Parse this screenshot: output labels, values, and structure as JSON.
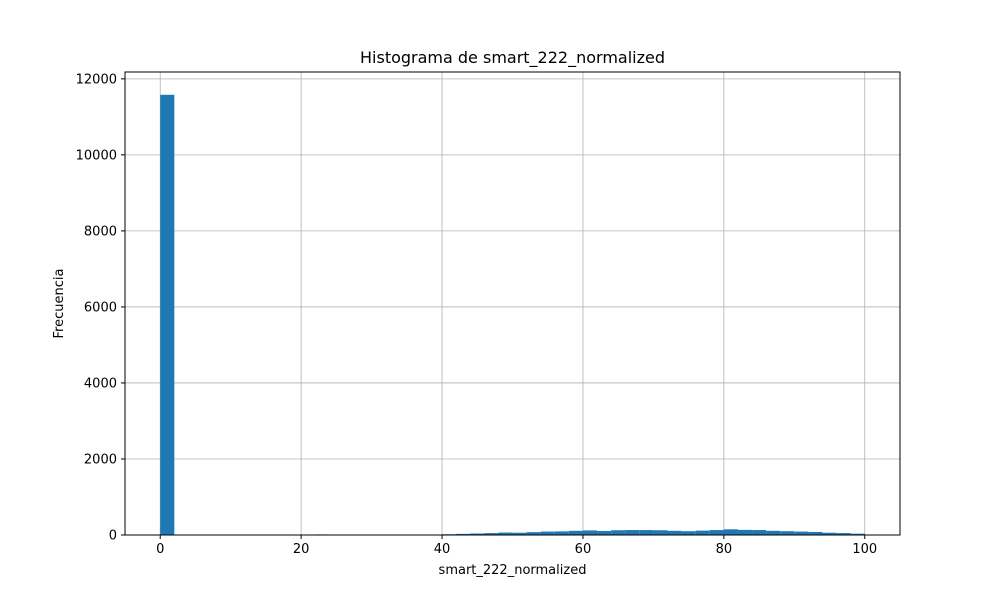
{
  "chart_data": {
    "type": "bar",
    "title": "Histograma de smart_222_normalized",
    "xlabel": "smart_222_normalized",
    "ylabel": "Frecuencia",
    "xlim": [
      -5,
      105
    ],
    "ylim": [
      0,
      12180
    ],
    "grid": true,
    "x_ticks": [
      0,
      20,
      40,
      60,
      80,
      100
    ],
    "y_ticks": [
      0,
      2000,
      4000,
      6000,
      8000,
      10000,
      12000
    ],
    "bin_edges": [
      0,
      2,
      4,
      6,
      8,
      10,
      12,
      14,
      16,
      18,
      20,
      22,
      24,
      26,
      28,
      30,
      32,
      34,
      36,
      38,
      40,
      42,
      44,
      46,
      48,
      50,
      52,
      54,
      56,
      58,
      60,
      62,
      64,
      66,
      68,
      70,
      72,
      74,
      76,
      78,
      80,
      82,
      84,
      86,
      88,
      90,
      92,
      94,
      96,
      98,
      100
    ],
    "values": [
      11580,
      0,
      0,
      0,
      0,
      0,
      0,
      12,
      0,
      10,
      0,
      15,
      0,
      0,
      0,
      0,
      0,
      0,
      0,
      10,
      20,
      30,
      40,
      50,
      65,
      60,
      75,
      90,
      95,
      110,
      120,
      105,
      125,
      130,
      130,
      125,
      110,
      100,
      115,
      130,
      150,
      135,
      130,
      110,
      100,
      90,
      80,
      60,
      50,
      35
    ],
    "bar_color": "#1f77b4"
  }
}
